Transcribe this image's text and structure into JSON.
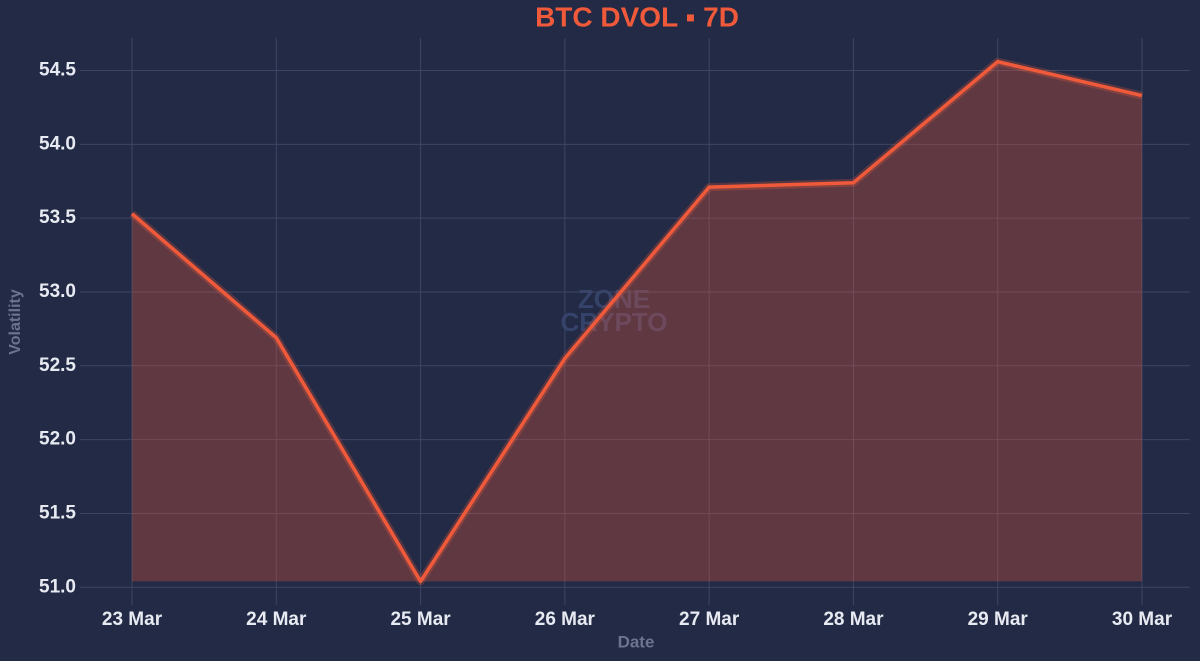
{
  "chart_data": {
    "type": "line",
    "title": "BTC DVOL ▪ 7D",
    "watermark": [
      "ZONE",
      "CRYPTO"
    ],
    "x_label": "Date",
    "y_label": "Volatility",
    "categories": [
      "23 Mar",
      "24 Mar",
      "25 Mar",
      "26 Mar",
      "27 Mar",
      "28 Mar",
      "29 Mar",
      "30 Mar"
    ],
    "series": [
      {
        "name": "BTC DVOL",
        "color": "#f05a3a",
        "values": [
          53.53,
          52.69,
          51.04,
          52.55,
          53.71,
          53.74,
          54.56,
          54.33
        ]
      }
    ],
    "ylim": [
      50.88,
      54.72
    ],
    "yticks": [
      {
        "value": 51,
        "label": "51.0"
      },
      51.5,
      {
        "value": 52,
        "label": "52.0"
      },
      52.5,
      {
        "value": 53,
        "label": "53.0"
      },
      53.5,
      {
        "value": 54,
        "label": "54.0"
      },
      54.5
    ],
    "grid": true,
    "fill_area": true
  }
}
